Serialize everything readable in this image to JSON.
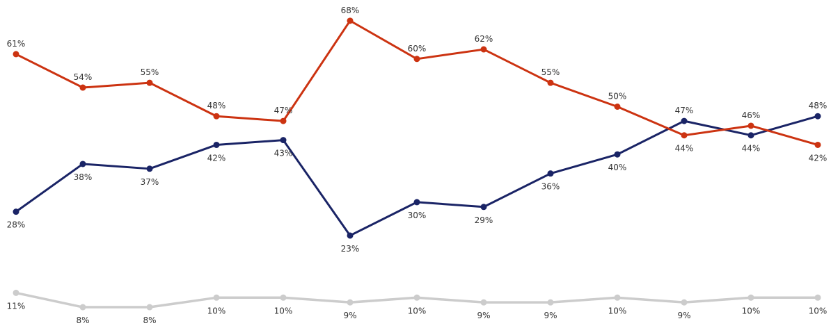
{
  "chart_data": {
    "type": "line",
    "title": "",
    "xlabel": "",
    "ylabel": "",
    "grid": false,
    "legend": "none",
    "ylim": [
      0,
      75
    ],
    "x": [
      1,
      2,
      3,
      4,
      5,
      6,
      7,
      8,
      9,
      10,
      11,
      12,
      13
    ],
    "series": [
      {
        "key": "red",
        "color": "#cc3311",
        "values": [
          61,
          54,
          55,
          48,
          47,
          68,
          60,
          62,
          55,
          50,
          44,
          46,
          42
        ],
        "labels": [
          "61%",
          "54%",
          "55%",
          "48%",
          "47%",
          "68%",
          "60%",
          "62%",
          "55%",
          "50%",
          "44%",
          "46%",
          "42%"
        ]
      },
      {
        "key": "navy",
        "color": "#1a2466",
        "values": [
          28,
          38,
          37,
          42,
          43,
          23,
          30,
          29,
          36,
          40,
          47,
          44,
          48
        ],
        "labels": [
          "28%",
          "38%",
          "37%",
          "42%",
          "43%",
          "23%",
          "30%",
          "29%",
          "36%",
          "40%",
          "47%",
          "44%",
          "48%"
        ]
      },
      {
        "key": "gray",
        "color": "#cccccc",
        "values": [
          11,
          8,
          8,
          10,
          10,
          9,
          10,
          9,
          9,
          10,
          9,
          10,
          10
        ],
        "labels": [
          "11%",
          "8%",
          "8%",
          "10%",
          "10%",
          "9%",
          "10%",
          "9%",
          "9%",
          "10%",
          "9%",
          "10%",
          "10%"
        ]
      }
    ]
  }
}
